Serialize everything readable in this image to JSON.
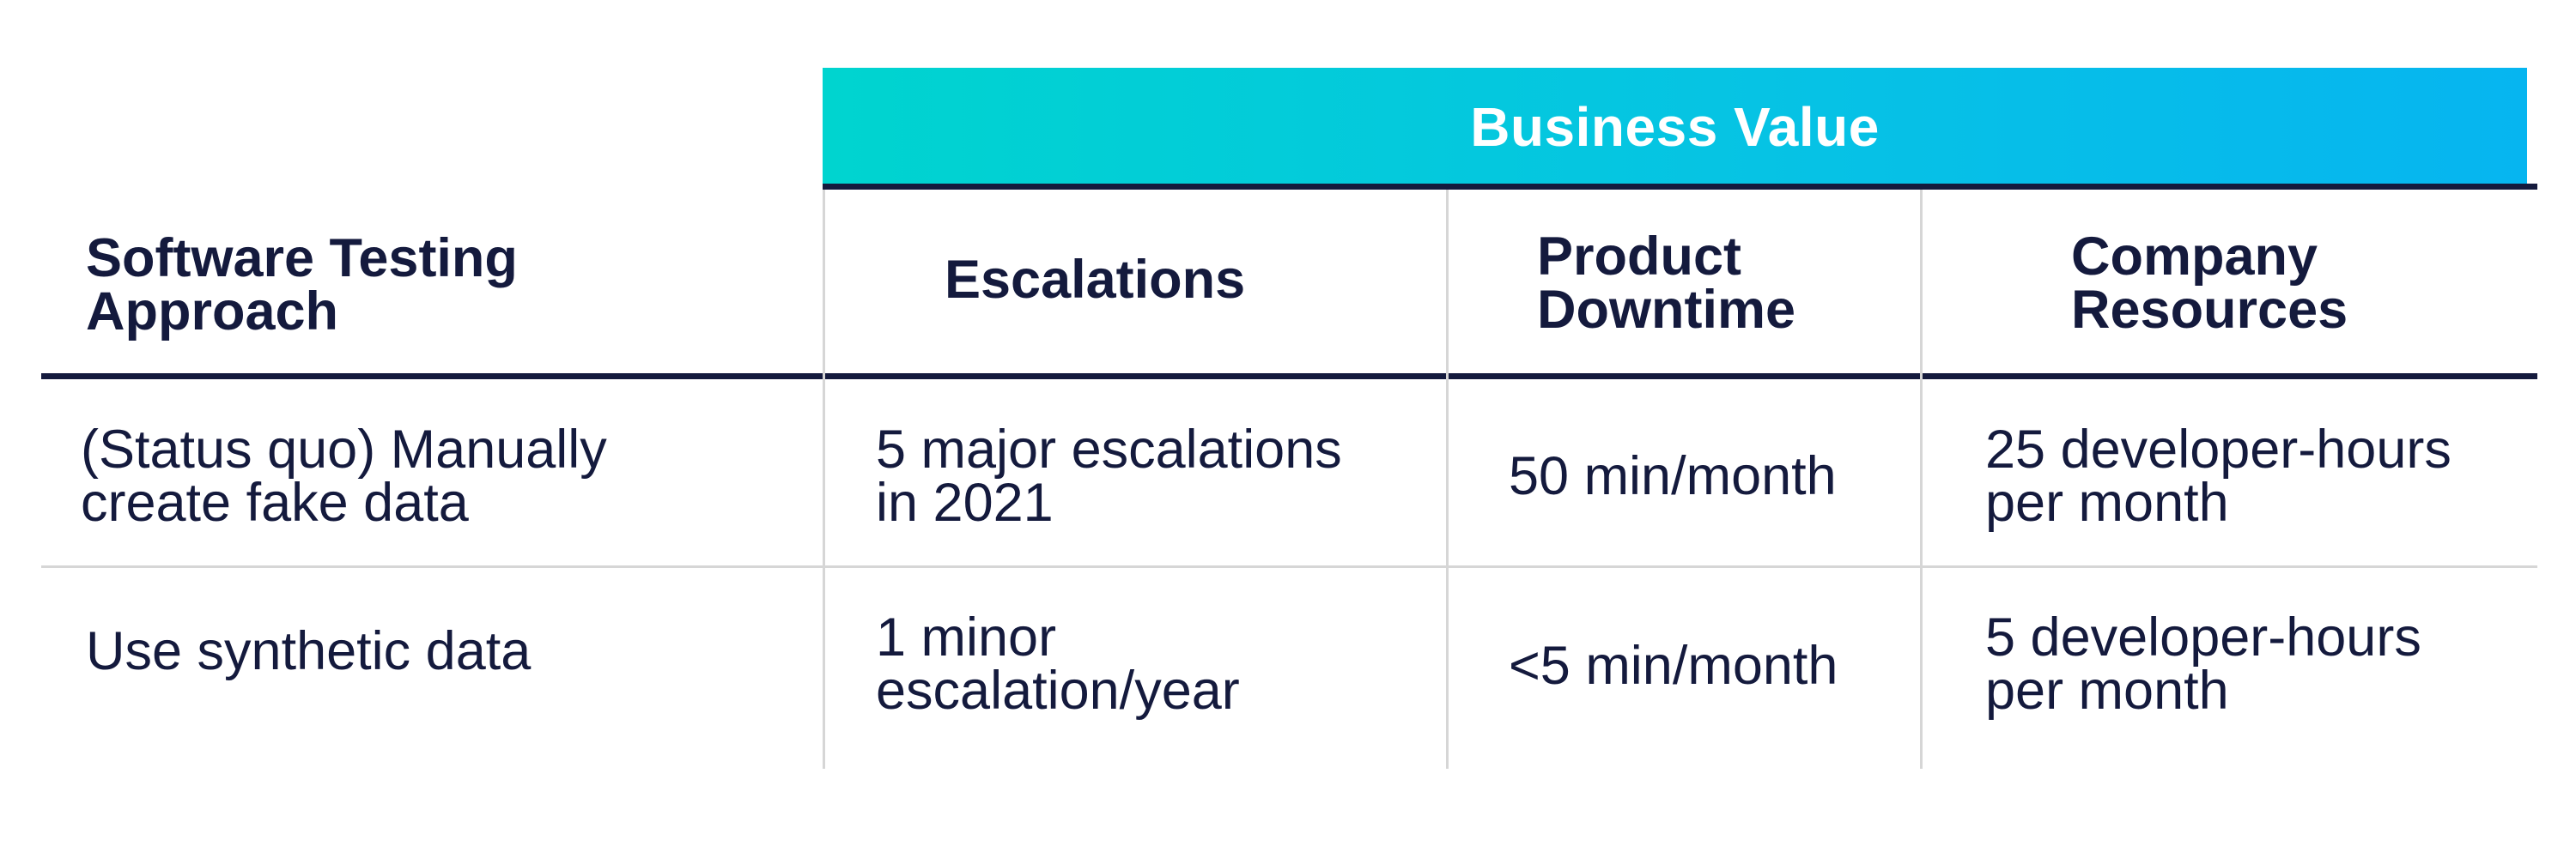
{
  "banner": {
    "label": "Business Value",
    "gradient_start": "#00d4cf",
    "gradient_end": "#06b5f0"
  },
  "colors": {
    "text": "#141a3d",
    "rule_thick": "#141a3d",
    "rule_thin": "#d6d6d6"
  },
  "table": {
    "headers": {
      "approach": "Software Testing\nApproach",
      "escalations": "Escalations",
      "downtime": "Product\nDowntime",
      "resources": "Company\nResources"
    },
    "rows": [
      {
        "approach": "(Status quo) Manually\ncreate fake data",
        "escalations": "5 major escalations\nin 2021",
        "downtime": "50 min/month",
        "resources": "25 developer-hours\nper month"
      },
      {
        "approach": "Use synthetic data",
        "escalations": "1 minor\nescalation/year",
        "downtime": "<5 min/month",
        "resources": "5 developer-hours\nper month"
      }
    ]
  }
}
